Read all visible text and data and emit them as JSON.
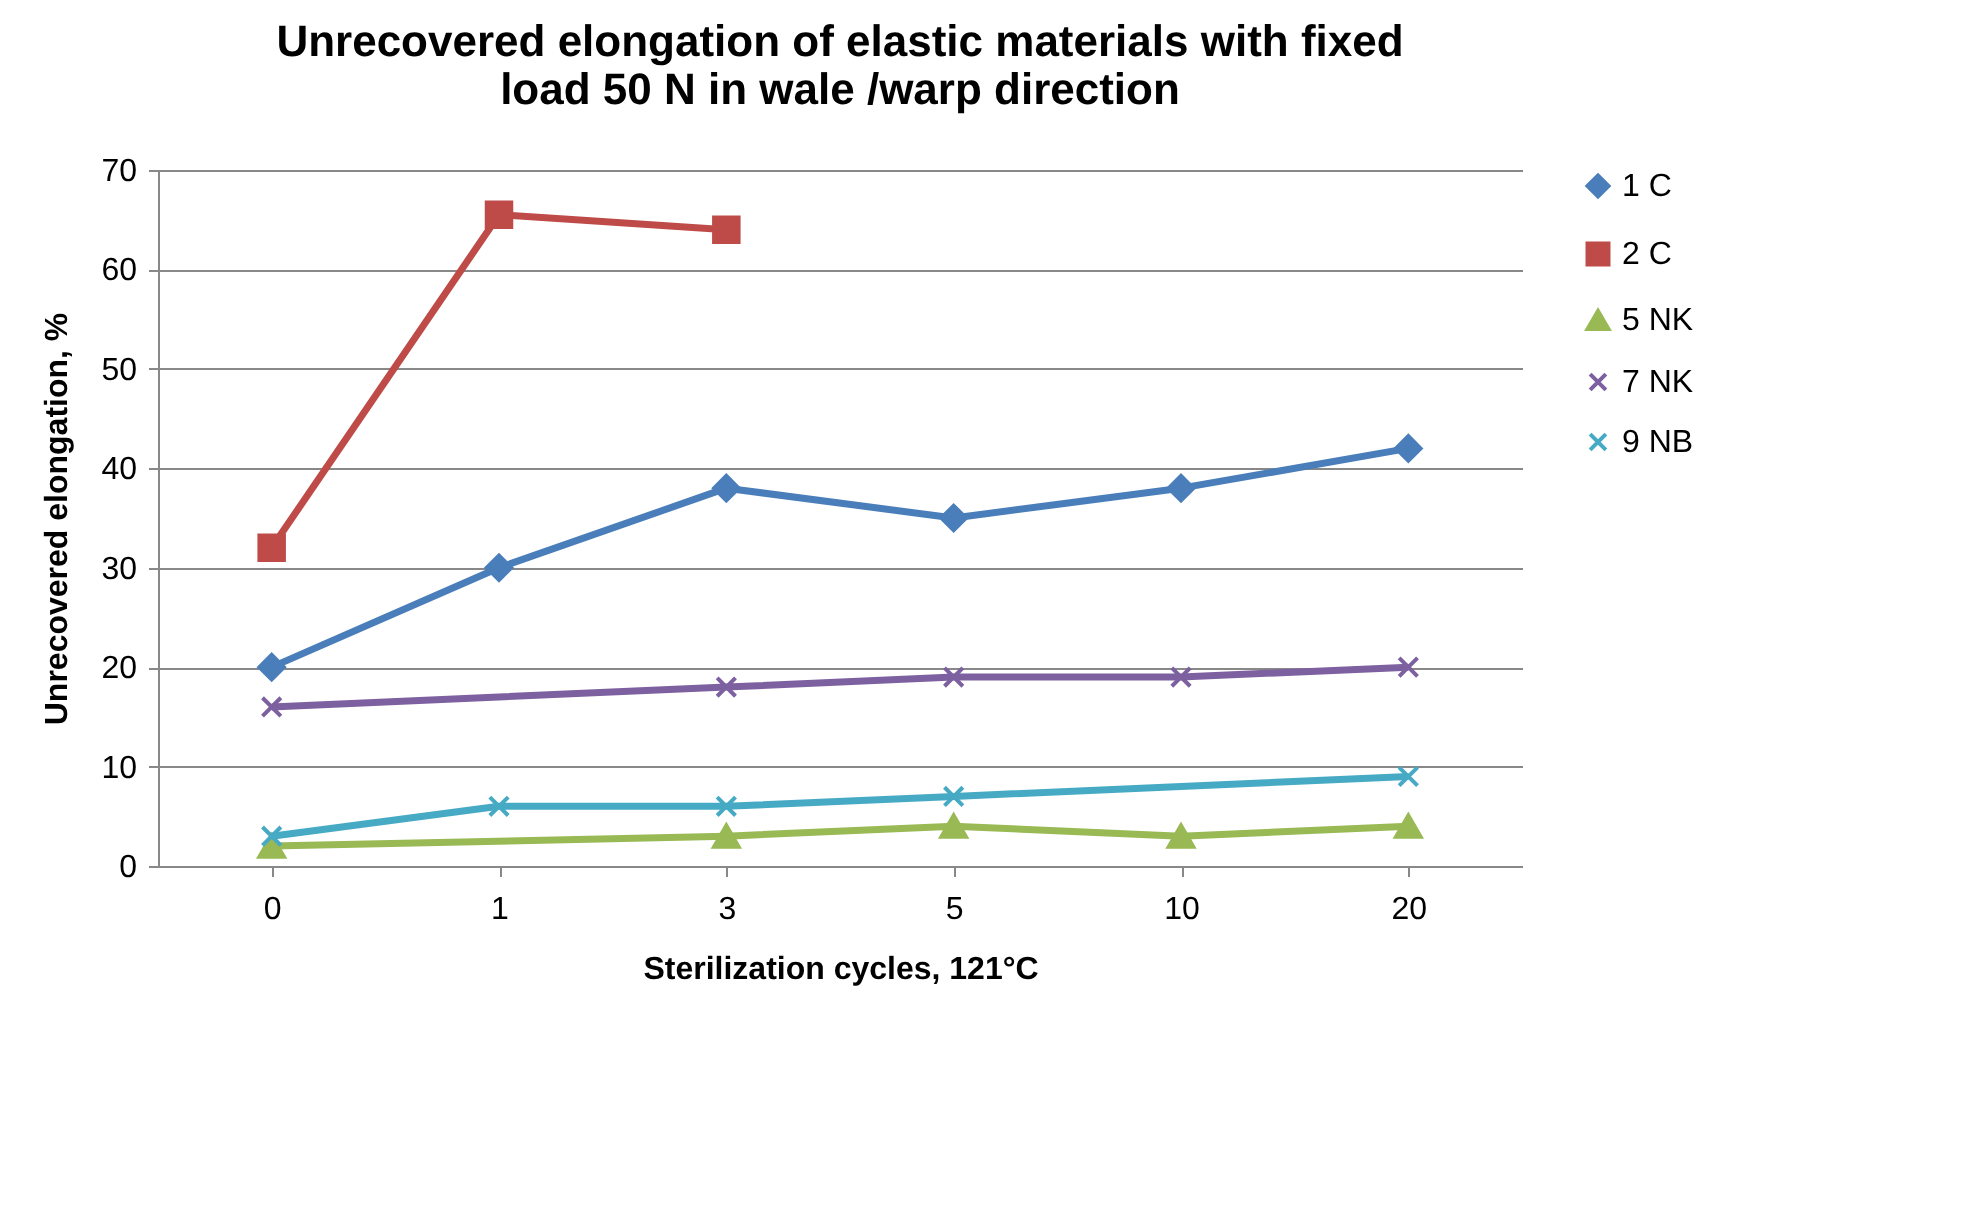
{
  "chart_data": {
    "type": "line",
    "title": "Unrecovered elongation of elastic materials with fixed load 50 N in wale /warp direction",
    "xlabel": "Sterilization cycles, 121°C",
    "ylabel": "Unrecovered elongation, %",
    "categories": [
      "0",
      "1",
      "3",
      "5",
      "10",
      "20"
    ],
    "series": [
      {
        "name": "1 C",
        "color": "#4a7ebb",
        "marker": "diamond",
        "values": [
          20,
          30,
          38,
          35,
          38,
          42
        ]
      },
      {
        "name": "2 C",
        "color": "#be4b48",
        "marker": "square",
        "values": [
          32,
          65.5,
          64,
          null,
          null,
          null
        ]
      },
      {
        "name": "5 NK",
        "color": "#98b954",
        "marker": "triangle",
        "values": [
          2,
          null,
          3,
          4,
          3,
          4
        ]
      },
      {
        "name": "7 NK",
        "color": "#7d60a0",
        "marker": "cross",
        "values": [
          16,
          null,
          18,
          19,
          19,
          20
        ]
      },
      {
        "name": "9 NB",
        "color": "#46aac5",
        "marker": "cross",
        "values": [
          3,
          6,
          6,
          7,
          null,
          9
        ]
      }
    ],
    "ylim": [
      0,
      70
    ],
    "yticks": [
      0,
      10,
      20,
      30,
      40,
      50,
      60,
      70
    ],
    "grid": "y",
    "legend": "right",
    "line_style": "solid"
  }
}
